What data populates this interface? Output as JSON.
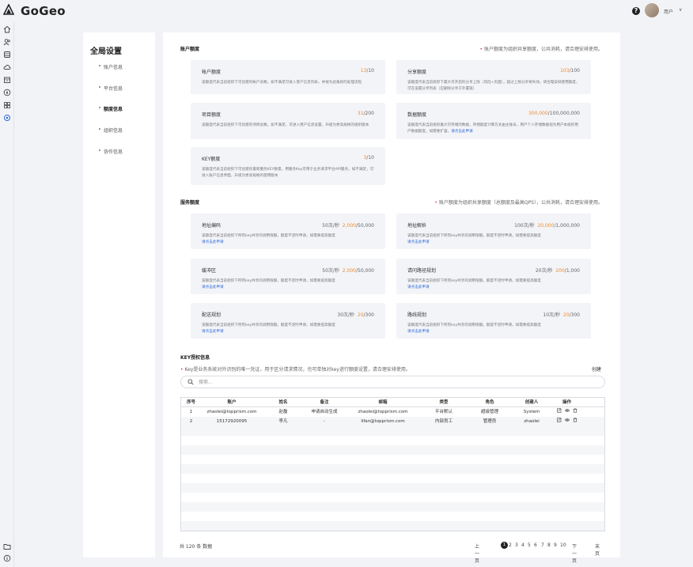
{
  "app": {
    "name": "GoGeo",
    "help_symbol": "?",
    "user_name": "用户",
    "user_chevron": "∨"
  },
  "rail": {
    "top_icons": [
      "home-icon",
      "user-group-icon",
      "database-icon",
      "cloud-icon",
      "layers-icon",
      "compass-icon",
      "grid-icon",
      "settings-icon"
    ],
    "bottom_icons": [
      "folder-icon",
      "info-icon"
    ],
    "active": "settings-icon",
    "accent": "#2f6bd8"
  },
  "settings_nav": {
    "title": "全局设置",
    "items": [
      "账户信息",
      "平台信息",
      "额度信息",
      "组织信息",
      "协作信息"
    ],
    "active_index": 2
  },
  "account_quota": {
    "title": "账户额度",
    "note": "账户额度为组织共享额度，公共消耗，请合理安排使用。",
    "cards": [
      {
        "title": "帐户额度",
        "used": "13",
        "total": "/10",
        "desc": "该额度代表当前组织下可创建的帐户总数。如不满足可进入客户信息列表，并按为此角标的处理流程",
        "link": ""
      },
      {
        "title": "分享额度",
        "used": "103",
        "total": "/100",
        "desc": "该额度代表当前组织下最大可开启的分享上限（风险+负面），超过上限分享将失效。请合理安排使用额度，可在设置分享列表（应删除分享于外置链）",
        "link": ""
      },
      {
        "title": "项目额度",
        "used": "31",
        "total": "/200",
        "desc": "该额度代表当前组织下可创建的项目总数。如不满足，可进入用户信息设置，升级为更高规格的组织版本",
        "link": ""
      },
      {
        "title": "数据额度",
        "used": "300,000",
        "total": "/100,000,000",
        "desc": "该额度代表当前组织最大可存储的数据，存储额度计算方式由主账号，用户个人存储数据视为用户本组织用户数据额度。如需要扩容，",
        "link": "请点击此申请"
      },
      {
        "title": "KEY额度",
        "used": "3",
        "total": "/10",
        "desc": "该额度代表当前组织下可创建的最新服务KEY数量，用服务Key可用于业务请求平台API服务。如不满足，可进入账户信息界面，升级为更高规格的使用版本",
        "link": ""
      }
    ]
  },
  "service_quota": {
    "title": "服务额度",
    "note": "账户额度为组织共享额度（总额度及最高QPS），公共消耗，请合理安排使用。",
    "cards": [
      {
        "title": "地址编码",
        "rate": "50次/秒",
        "used": "2,000",
        "total": "/50,000",
        "desc": "该额度代表当前组织下所有key共享的调用限额。额度不足时申请，如需要提高额度",
        "link": "请点击此申请"
      },
      {
        "title": "地址解析",
        "rate": "100次/秒",
        "used": "20,000",
        "total": "/1,000,000",
        "desc": "该额度代表当前组织下所有key共享的调用限额。额度不足时申请，如需要提高额度",
        "link": "请点击此申请"
      },
      {
        "title": "缓冲区",
        "rate": "50次/秒",
        "used": "2,000",
        "total": "/50,000",
        "desc": "该额度代表当前组织下所有key共享的调用限额。额度不足时申请，如需要提高额度",
        "link": "请点击此申请"
      },
      {
        "title": "请问路径规划",
        "rate": "20次/秒",
        "used": "200",
        "total": "/1,000",
        "desc": "该额度代表当前组织下所有key共享的调用限额。额度不足时申请，如需要提高额度",
        "link": "请点击此申请"
      },
      {
        "title": "配送规划",
        "rate": "30次/秒",
        "used": "20",
        "total": "/300",
        "desc": "该额度代表当前组织下所有key共享的调用限额。额度不足时申请，如需要提高额度",
        "link": "请点击此申请"
      },
      {
        "title": "路线规划",
        "rate": "10次/秒",
        "used": "20",
        "total": "/300",
        "desc": "该额度代表当前组织下所有key共享的调用限额。额度不足时申请，如需要提高额度",
        "link": "请点击此申请"
      }
    ]
  },
  "key_section": {
    "title": "KEY授权信息",
    "note": "Key是业务系统对外识别的唯一凭证，用于区分请求情况，也可单独对key进行额度设置，请合理安排使用。",
    "create_label": "创建",
    "search_placeholder": "搜索..."
  },
  "table": {
    "columns": [
      "序号",
      "账户",
      "姓名",
      "备注",
      "邮箱",
      "类型",
      "角色",
      "创建人",
      "操作"
    ],
    "rows": [
      [
        "1",
        "zhaolei@topprism.com",
        "赵磊",
        "申请自动生成",
        "zhaolei@topprism.com",
        "平台默认",
        "超级管理",
        "System"
      ],
      [
        "2",
        "15172920095",
        "李凡",
        "-",
        "lifan@topprism.com",
        "内部员工",
        "管理员",
        "zhaolei"
      ]
    ],
    "empty_rows": 11
  },
  "pagination": {
    "total_text": "共 120 条 数据",
    "prev": "上一页",
    "pages": [
      "1",
      "2",
      "3",
      "4",
      "5",
      "6",
      "7",
      "8",
      "9",
      "10"
    ],
    "current": "1",
    "next": "下一页",
    "last": "末页"
  }
}
